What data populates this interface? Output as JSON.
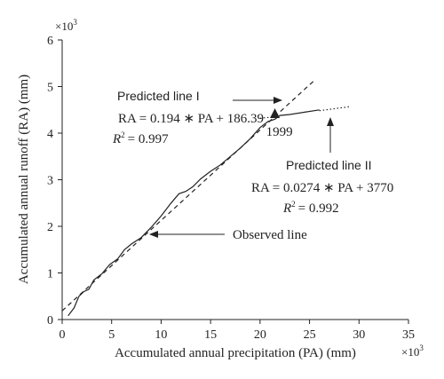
{
  "chart_data": {
    "type": "line",
    "title": "",
    "xlabel": "Accumulated annual precipitation (PA) (mm)",
    "ylabel": "Accumulated annual runoff (RA) (mm)",
    "x_multiplier": "×10",
    "y_multiplier": "×10",
    "multiplier_exponent": "3",
    "xlim": [
      0,
      35
    ],
    "ylim": [
      0,
      6
    ],
    "x_ticks": [
      0,
      5,
      10,
      15,
      20,
      25,
      30,
      35
    ],
    "y_ticks": [
      0,
      1,
      2,
      3,
      4,
      5,
      6
    ],
    "grid": false,
    "series": [
      {
        "style": "solid",
        "points": [
          [
            0.6,
            0.08
          ],
          [
            1.2,
            0.25
          ],
          [
            1.7,
            0.5
          ],
          [
            2.2,
            0.6
          ],
          [
            2.7,
            0.65
          ],
          [
            3.2,
            0.85
          ],
          [
            4.0,
            0.98
          ],
          [
            4.8,
            1.18
          ],
          [
            5.6,
            1.3
          ],
          [
            6.3,
            1.5
          ],
          [
            7.0,
            1.62
          ],
          [
            8.0,
            1.76
          ],
          [
            9.0,
            1.98
          ],
          [
            10.0,
            2.22
          ],
          [
            11.0,
            2.5
          ],
          [
            11.8,
            2.7
          ],
          [
            12.5,
            2.75
          ],
          [
            13.2,
            2.85
          ],
          [
            14.0,
            3.02
          ],
          [
            15.0,
            3.18
          ],
          [
            16.0,
            3.32
          ],
          [
            17.0,
            3.5
          ],
          [
            18.0,
            3.68
          ],
          [
            19.0,
            3.88
          ],
          [
            20.0,
            4.12
          ],
          [
            20.8,
            4.25
          ],
          [
            21.5,
            4.3
          ],
          [
            22.0,
            4.38
          ],
          [
            23.0,
            4.4
          ],
          [
            24.5,
            4.45
          ],
          [
            26.0,
            4.5
          ]
        ]
      },
      {
        "style": "dashed",
        "points": [
          [
            0,
            0.186
          ],
          [
            25.5,
            5.133
          ]
        ]
      },
      {
        "style": "dotted",
        "points": [
          [
            20.0,
            4.32
          ],
          [
            21.5,
            4.35
          ]
        ]
      },
      {
        "style": "dotted",
        "points": [
          [
            26.0,
            4.482
          ],
          [
            29.0,
            4.565
          ]
        ]
      }
    ],
    "marker": {
      "label": "1999",
      "x": 21.5,
      "y": 4.38
    },
    "annotations": {
      "predicted_1_label": "Predicted line I",
      "predicted_1_eq": "RA = 0.194 ∗ PA + 186.39",
      "predicted_1_r2": "= 0.997",
      "predicted_2_label": "Predicted line II",
      "predicted_2_eq": "RA = 0.0274 ∗ PA + 3770",
      "predicted_2_r2": "= 0.992",
      "observed_label": "Observed line",
      "r2_symbol": "R",
      "r2_exponent": "2"
    }
  }
}
